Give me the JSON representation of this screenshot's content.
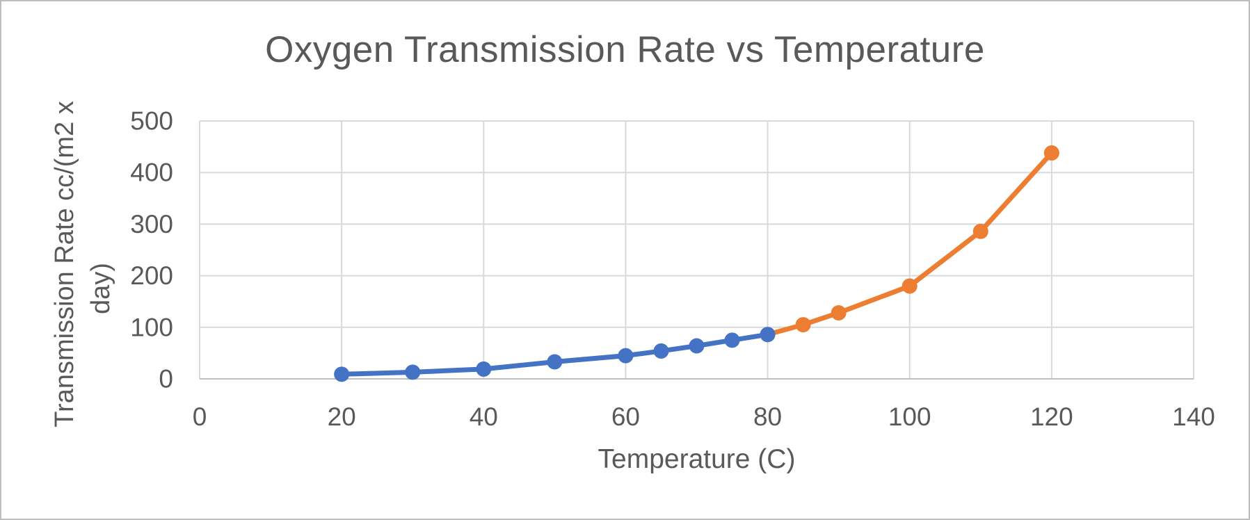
{
  "chart_data": {
    "type": "line",
    "title": "Oxygen Transmission Rate vs Temperature",
    "xlabel": "Temperature (C)",
    "ylabel": "Transmission Rate cc/(m2 x day)",
    "ylabel_lines": [
      "Transmission Rate cc/(m2 x",
      "day)"
    ],
    "xlim": [
      0,
      140
    ],
    "ylim": [
      0,
      500
    ],
    "x_ticks": [
      0,
      20,
      40,
      60,
      80,
      100,
      120,
      140
    ],
    "y_ticks": [
      0,
      100,
      200,
      300,
      400,
      500
    ],
    "grid": true,
    "legend_position": "none",
    "marker": "circle",
    "series": [
      {
        "name": "series-1",
        "color": "#4472C4",
        "x": [
          20,
          30,
          40,
          50,
          60,
          65,
          70,
          75,
          80
        ],
        "y": [
          9,
          13,
          19,
          33,
          45,
          54,
          64,
          75,
          86
        ]
      },
      {
        "name": "series-2",
        "color": "#ED7D31",
        "x": [
          80,
          85,
          90,
          100,
          110,
          120
        ],
        "y": [
          86,
          105,
          128,
          180,
          286,
          438
        ]
      }
    ]
  },
  "style": {
    "text_color": "#595959",
    "gridline_color": "#D9D9D9",
    "axis_line_color": "#BFBFBF",
    "background_color": "#FFFFFF",
    "border_color": "#BDBDBD"
  }
}
